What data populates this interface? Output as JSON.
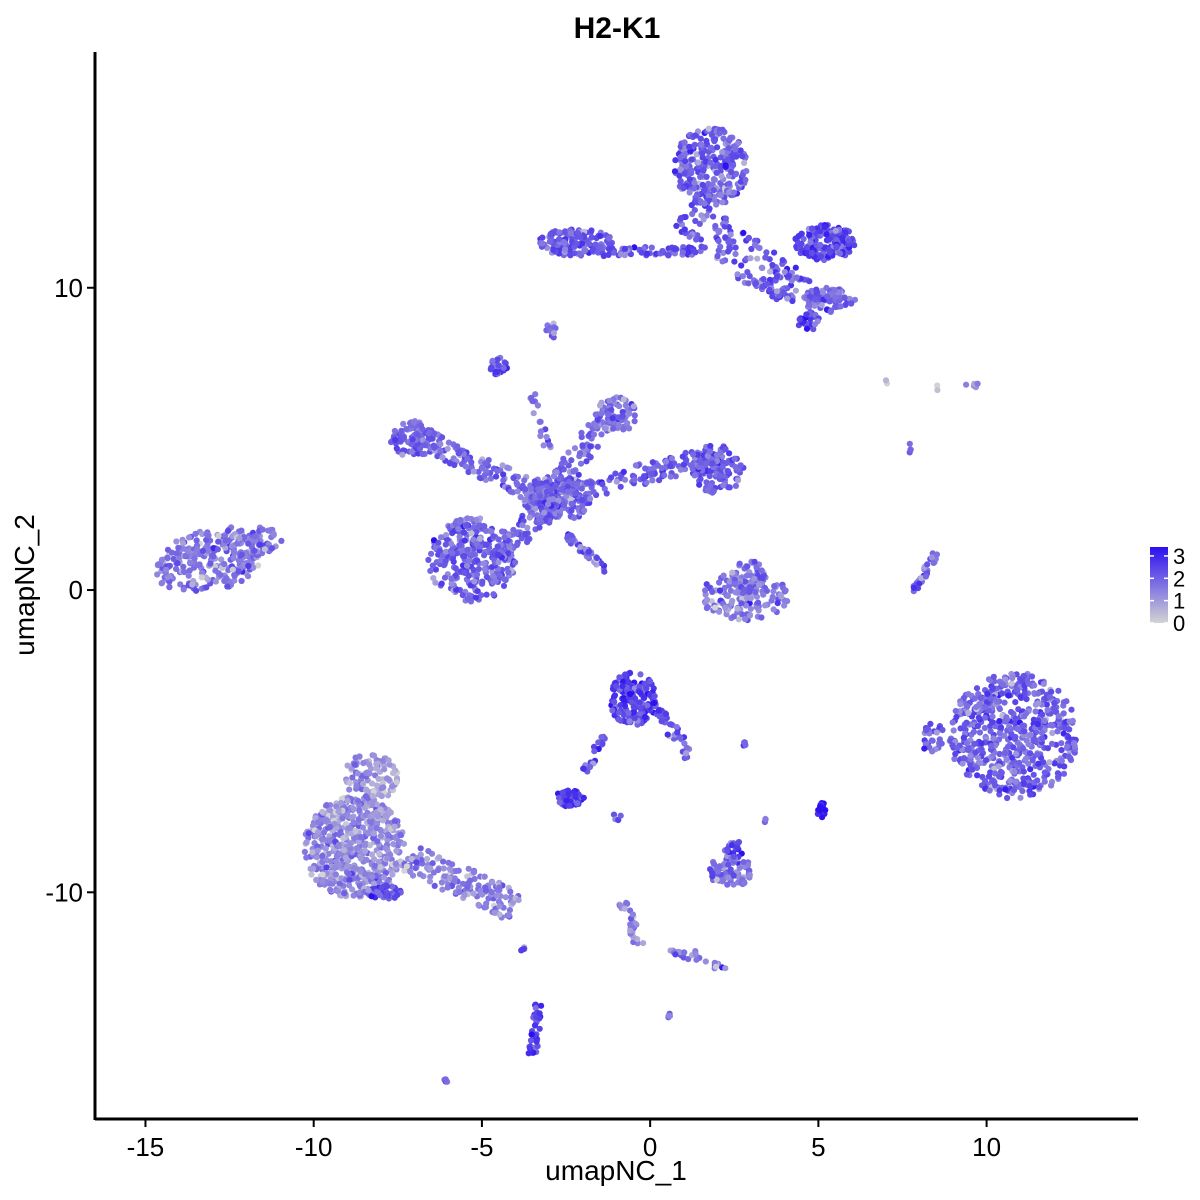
{
  "chart_data": {
    "type": "scatter",
    "title": "H2-K1",
    "xlabel": "umapNC_1",
    "ylabel": "umapNC_2",
    "xlim": [
      -16.5,
      14.5
    ],
    "ylim": [
      -17.5,
      17.8
    ],
    "x_ticks": [
      -15,
      -10,
      -5,
      0,
      5,
      10
    ],
    "y_ticks": [
      -10,
      0,
      10
    ],
    "x_tick_labels": [
      "-15",
      "-10",
      "-5",
      "0",
      "5",
      "10"
    ],
    "y_tick_labels": [
      "-10",
      "0",
      "10"
    ],
    "grid": false,
    "color_scale": {
      "low_color": "#d3d3d3",
      "high_color": "#2b10f0",
      "min": 0,
      "max": 3.4,
      "ticks": [
        0,
        1,
        2,
        3
      ],
      "tick_labels": [
        "0",
        "1",
        "2",
        "3"
      ],
      "legend_position": "right"
    },
    "clusters": [
      {
        "shape": "ellipse",
        "cx": -13.0,
        "cy": 1.0,
        "rx": 1.8,
        "ry": 1.0,
        "rot": 15,
        "n": 260,
        "expr": 1.7
      },
      {
        "shape": "ellipse",
        "cx": -11.8,
        "cy": 1.6,
        "rx": 0.9,
        "ry": 0.5,
        "rot": 10,
        "n": 60,
        "expr": 1.7
      },
      {
        "shape": "ellipse",
        "cx": -5.3,
        "cy": 1.0,
        "rx": 1.3,
        "ry": 1.4,
        "rot": 0,
        "n": 300,
        "expr": 2.0
      },
      {
        "shape": "ellipse",
        "cx": -7.0,
        "cy": 5.0,
        "rx": 0.8,
        "ry": 0.6,
        "rot": 0,
        "n": 80,
        "expr": 1.9
      },
      {
        "shape": "ellipse",
        "cx": -1.0,
        "cy": 5.8,
        "rx": 0.6,
        "ry": 0.6,
        "rot": 0,
        "n": 70,
        "expr": 1.6
      },
      {
        "shape": "ellipse",
        "cx": 2.0,
        "cy": 4.0,
        "rx": 0.8,
        "ry": 0.8,
        "rot": 0,
        "n": 110,
        "expr": 2.2
      },
      {
        "shape": "ellipse",
        "cx": -2.8,
        "cy": 3.0,
        "rx": 1.0,
        "ry": 0.8,
        "rot": 0,
        "n": 140,
        "expr": 2.0
      },
      {
        "shape": "ellipse",
        "cx": -4.5,
        "cy": 7.4,
        "rx": 0.25,
        "ry": 0.3,
        "rot": 0,
        "n": 30,
        "expr": 2.5
      },
      {
        "shape": "segment",
        "x1": -7.3,
        "y1": 5.3,
        "x2": -3.0,
        "y2": 3.0,
        "w": 0.35,
        "n": 150,
        "expr": 1.9
      },
      {
        "shape": "segment",
        "x1": -1.2,
        "y1": 6.0,
        "x2": -3.0,
        "y2": 3.0,
        "w": 0.35,
        "n": 100,
        "expr": 1.8
      },
      {
        "shape": "segment",
        "x1": 2.0,
        "y1": 4.5,
        "x2": -3.0,
        "y2": 3.0,
        "w": 0.35,
        "n": 160,
        "expr": 2.0
      },
      {
        "shape": "segment",
        "x1": -4.5,
        "y1": 1.0,
        "x2": -3.0,
        "y2": 3.0,
        "w": 0.35,
        "n": 100,
        "expr": 2.0
      },
      {
        "shape": "segment",
        "x1": -2.5,
        "y1": 1.8,
        "x2": -1.2,
        "y2": 0.6,
        "w": 0.12,
        "n": 40,
        "expr": 2.0
      },
      {
        "shape": "segment",
        "x1": -3.5,
        "y1": 6.5,
        "x2": -3.0,
        "y2": 4.5,
        "w": 0.12,
        "n": 18,
        "expr": 1.6
      },
      {
        "shape": "ellipse",
        "cx": 1.8,
        "cy": 14.0,
        "rx": 1.1,
        "ry": 1.3,
        "rot": 0,
        "n": 280,
        "expr": 2.1
      },
      {
        "shape": "ellipse",
        "cx": -2.2,
        "cy": 11.5,
        "rx": 1.1,
        "ry": 0.45,
        "rot": 0,
        "n": 140,
        "expr": 2.1
      },
      {
        "shape": "ellipse",
        "cx": 5.2,
        "cy": 11.5,
        "rx": 0.9,
        "ry": 0.6,
        "rot": 0,
        "n": 160,
        "expr": 2.5
      },
      {
        "shape": "ellipse",
        "cx": 5.3,
        "cy": 9.6,
        "rx": 0.8,
        "ry": 0.4,
        "rot": 0,
        "n": 90,
        "expr": 2.0
      },
      {
        "shape": "segment",
        "x1": -1.5,
        "y1": 11.2,
        "x2": 1.5,
        "y2": 11.2,
        "w": 0.15,
        "n": 60,
        "expr": 2.2
      },
      {
        "shape": "segment",
        "x1": 1.0,
        "y1": 12.5,
        "x2": 4.5,
        "y2": 9.8,
        "w": 0.6,
        "n": 150,
        "expr": 2.1
      },
      {
        "shape": "segment",
        "x1": 2.5,
        "y1": 10.4,
        "x2": 4.3,
        "y2": 9.6,
        "w": 0.1,
        "n": 25,
        "expr": 1.9
      },
      {
        "shape": "ellipse",
        "cx": 4.7,
        "cy": 8.9,
        "rx": 0.35,
        "ry": 0.3,
        "rot": 0,
        "n": 30,
        "expr": 2.4
      },
      {
        "shape": "ellipse",
        "cx": -2.9,
        "cy": 8.6,
        "rx": 0.2,
        "ry": 0.25,
        "rot": 0,
        "n": 10,
        "expr": 1.8
      },
      {
        "shape": "ellipse",
        "cx": 2.8,
        "cy": -0.2,
        "rx": 1.3,
        "ry": 0.8,
        "rot": 0,
        "n": 150,
        "expr": 1.6
      },
      {
        "shape": "ellipse",
        "cx": 2.9,
        "cy": 0.5,
        "rx": 0.5,
        "ry": 0.5,
        "rot": 0,
        "n": 40,
        "expr": 1.8
      },
      {
        "shape": "segment",
        "x1": 7.8,
        "y1": -0.1,
        "x2": 8.5,
        "y2": 1.2,
        "w": 0.1,
        "n": 30,
        "expr": 2.0
      },
      {
        "shape": "ellipse",
        "cx": 10.8,
        "cy": -4.8,
        "rx": 1.9,
        "ry": 2.1,
        "rot": 0,
        "n": 600,
        "expr": 2.0
      },
      {
        "shape": "ellipse",
        "cx": 8.4,
        "cy": -4.9,
        "rx": 0.35,
        "ry": 0.5,
        "rot": 0,
        "n": 25,
        "expr": 2.0
      },
      {
        "shape": "ellipse",
        "cx": -8.8,
        "cy": -8.5,
        "rx": 1.5,
        "ry": 1.7,
        "rot": 0,
        "n": 550,
        "expr": 1.3
      },
      {
        "shape": "ellipse",
        "cx": -8.3,
        "cy": -6.2,
        "rx": 0.8,
        "ry": 0.8,
        "rot": 0,
        "n": 100,
        "expr": 1.1
      },
      {
        "shape": "segment",
        "x1": -7.2,
        "y1": -8.8,
        "x2": -4.0,
        "y2": -10.5,
        "w": 0.5,
        "n": 160,
        "expr": 1.5
      },
      {
        "shape": "ellipse",
        "cx": -7.9,
        "cy": -10.0,
        "rx": 0.5,
        "ry": 0.25,
        "rot": 0,
        "n": 40,
        "expr": 2.5
      },
      {
        "shape": "ellipse",
        "cx": -0.5,
        "cy": -3.6,
        "rx": 0.7,
        "ry": 0.9,
        "rot": 0,
        "n": 160,
        "expr": 2.5
      },
      {
        "shape": "segment",
        "x1": 0.2,
        "y1": -4.0,
        "x2": 1.2,
        "y2": -5.5,
        "w": 0.2,
        "n": 40,
        "expr": 2.2
      },
      {
        "shape": "segment",
        "x1": -1.4,
        "y1": -4.8,
        "x2": -1.9,
        "y2": -6.0,
        "w": 0.12,
        "n": 20,
        "expr": 2.2
      },
      {
        "shape": "ellipse",
        "cx": -2.4,
        "cy": -6.9,
        "rx": 0.45,
        "ry": 0.3,
        "rot": 0,
        "n": 50,
        "expr": 2.6
      },
      {
        "shape": "ellipse",
        "cx": 2.4,
        "cy": -9.3,
        "rx": 0.7,
        "ry": 0.5,
        "rot": 0,
        "n": 70,
        "expr": 1.8
      },
      {
        "shape": "ellipse",
        "cx": 2.5,
        "cy": -8.6,
        "rx": 0.3,
        "ry": 0.3,
        "rot": 0,
        "n": 20,
        "expr": 2.6
      },
      {
        "shape": "ellipse",
        "cx": 5.1,
        "cy": -7.3,
        "rx": 0.15,
        "ry": 0.3,
        "rot": 0,
        "n": 15,
        "expr": 3.2
      },
      {
        "shape": "segment",
        "x1": -0.8,
        "y1": -10.3,
        "x2": -0.3,
        "y2": -11.8,
        "w": 0.15,
        "n": 30,
        "expr": 1.4
      },
      {
        "shape": "segment",
        "x1": 0.5,
        "y1": -11.9,
        "x2": 2.4,
        "y2": -12.6,
        "w": 0.1,
        "n": 25,
        "expr": 1.8
      },
      {
        "shape": "segment",
        "x1": -3.3,
        "y1": -13.7,
        "x2": -3.5,
        "y2": -15.4,
        "w": 0.12,
        "n": 40,
        "expr": 2.6
      },
      {
        "shape": "ellipse",
        "cx": -3.8,
        "cy": -11.8,
        "rx": 0.1,
        "ry": 0.15,
        "rot": 0,
        "n": 4,
        "expr": 2.4
      },
      {
        "shape": "ellipse",
        "cx": -6.1,
        "cy": -16.2,
        "rx": 0.1,
        "ry": 0.1,
        "rot": 0,
        "n": 4,
        "expr": 1.8
      },
      {
        "shape": "ellipse",
        "cx": 0.6,
        "cy": -14.1,
        "rx": 0.1,
        "ry": 0.1,
        "rot": 0,
        "n": 4,
        "expr": 1.9
      },
      {
        "shape": "ellipse",
        "cx": 2.8,
        "cy": -5.1,
        "rx": 0.1,
        "ry": 0.1,
        "rot": 0,
        "n": 4,
        "expr": 2.2
      },
      {
        "shape": "ellipse",
        "cx": 3.4,
        "cy": -7.6,
        "rx": 0.1,
        "ry": 0.1,
        "rot": 0,
        "n": 4,
        "expr": 1.6
      },
      {
        "shape": "ellipse",
        "cx": 9.6,
        "cy": 6.8,
        "rx": 0.25,
        "ry": 0.1,
        "rot": 0,
        "n": 5,
        "expr": 1.3
      },
      {
        "shape": "ellipse",
        "cx": 7.0,
        "cy": 6.9,
        "rx": 0.1,
        "ry": 0.1,
        "rot": 0,
        "n": 2,
        "expr": 0.4
      },
      {
        "shape": "ellipse",
        "cx": 8.5,
        "cy": 6.7,
        "rx": 0.1,
        "ry": 0.1,
        "rot": 0,
        "n": 2,
        "expr": 0.6
      },
      {
        "shape": "ellipse",
        "cx": 7.7,
        "cy": 4.7,
        "rx": 0.1,
        "ry": 0.15,
        "rot": 0,
        "n": 4,
        "expr": 2.1
      },
      {
        "shape": "ellipse",
        "cx": -1.0,
        "cy": -7.5,
        "rx": 0.15,
        "ry": 0.15,
        "rot": 0,
        "n": 4,
        "expr": 2.0
      },
      {
        "shape": "ellipse",
        "cx": 1.3,
        "cy": -12.0,
        "rx": 0.1,
        "ry": 0.1,
        "rot": 0,
        "n": 3,
        "expr": 1.5
      }
    ]
  }
}
